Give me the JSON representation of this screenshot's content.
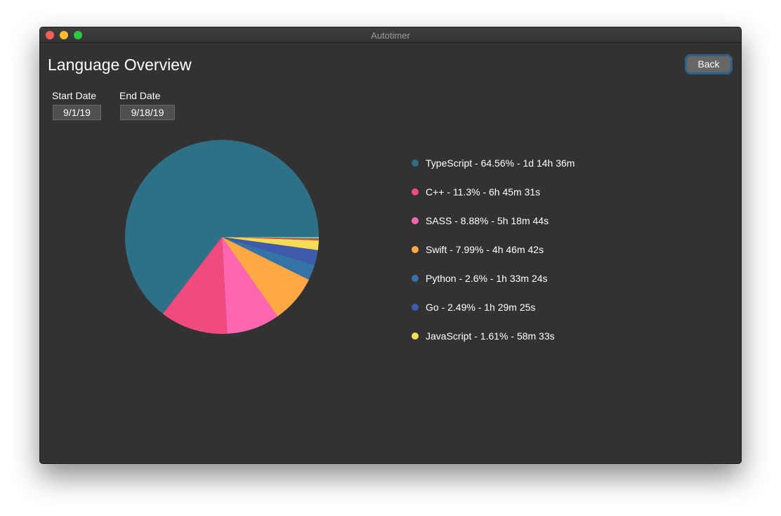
{
  "window": {
    "title": "Autotimer"
  },
  "header": {
    "title": "Language Overview",
    "back_button": "Back"
  },
  "filters": {
    "start_label": "Start Date",
    "start_value": "9/1/19",
    "end_label": "End Date",
    "end_value": "9/18/19"
  },
  "chart_data": {
    "type": "pie",
    "categories": [
      "TypeScript - 64.56% - 1d 14h 36m",
      "C++ - 11.3% - 6h 45m 31s",
      "SASS - 8.88% - 5h 18m 44s",
      "Swift - 7.99% - 4h 46m 42s",
      "Python - 2.6% - 1h 33m 24s",
      "Go - 2.49% - 1h 29m 25s",
      "JavaScript - 1.61% - 58m 33s",
      null,
      null
    ],
    "values": [
      64.56,
      11.3,
      8.88,
      7.99,
      2.6,
      2.49,
      1.61,
      0.3,
      0.27
    ],
    "colors": [
      "#2e7186",
      "#f04b7e",
      "#ff66b2",
      "#ffa845",
      "#3572a5",
      "#3d5aad",
      "#f4dc56",
      "#e0474c",
      "#6bc39a"
    ]
  }
}
